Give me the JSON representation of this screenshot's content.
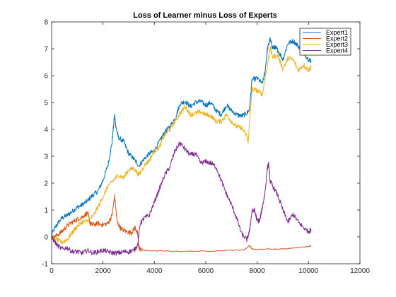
{
  "chart_data": {
    "type": "line",
    "title": "Loss of Learner minus Loss of Experts",
    "xlabel": "",
    "ylabel": "",
    "xlim": [
      0,
      12000
    ],
    "ylim": [
      -1,
      8
    ],
    "xticks": [
      0,
      2000,
      4000,
      6000,
      8000,
      10000,
      12000
    ],
    "yticks": [
      -1,
      0,
      1,
      2,
      3,
      4,
      5,
      6,
      7,
      8
    ],
    "grid": false,
    "legend": "top-right",
    "series": [
      {
        "name": "Expert1",
        "color": "#0072bd",
        "points": [
          [
            0,
            0.1
          ],
          [
            200,
            0.45
          ],
          [
            400,
            0.7
          ],
          [
            600,
            0.8
          ],
          [
            800,
            0.95
          ],
          [
            1000,
            1.1
          ],
          [
            1200,
            1.2
          ],
          [
            1400,
            1.35
          ],
          [
            1600,
            1.55
          ],
          [
            1800,
            1.7
          ],
          [
            2000,
            2.1
          ],
          [
            2200,
            2.7
          ],
          [
            2350,
            3.5
          ],
          [
            2450,
            4.55
          ],
          [
            2500,
            4.1
          ],
          [
            2600,
            3.7
          ],
          [
            2800,
            3.55
          ],
          [
            3000,
            3.1
          ],
          [
            3200,
            2.9
          ],
          [
            3400,
            2.65
          ],
          [
            3600,
            2.9
          ],
          [
            3800,
            3.1
          ],
          [
            4000,
            3.2
          ],
          [
            4200,
            3.55
          ],
          [
            4400,
            3.9
          ],
          [
            4600,
            4.1
          ],
          [
            4800,
            4.4
          ],
          [
            5000,
            4.95
          ],
          [
            5200,
            5.05
          ],
          [
            5400,
            4.85
          ],
          [
            5600,
            5.0
          ],
          [
            5800,
            5.05
          ],
          [
            6000,
            4.9
          ],
          [
            6200,
            5.0
          ],
          [
            6400,
            4.7
          ],
          [
            6600,
            4.55
          ],
          [
            6800,
            4.9
          ],
          [
            7000,
            4.7
          ],
          [
            7200,
            4.55
          ],
          [
            7400,
            4.5
          ],
          [
            7600,
            4.6
          ],
          [
            7700,
            4.75
          ],
          [
            7800,
            5.85
          ],
          [
            8000,
            5.9
          ],
          [
            8200,
            5.7
          ],
          [
            8300,
            6.1
          ],
          [
            8400,
            7.0
          ],
          [
            8500,
            7.35
          ],
          [
            8600,
            7.05
          ],
          [
            8700,
            7.05
          ],
          [
            8800,
            6.95
          ],
          [
            9000,
            6.6
          ],
          [
            9200,
            7.2
          ],
          [
            9400,
            7.3
          ],
          [
            9600,
            7.1
          ],
          [
            9800,
            6.9
          ],
          [
            10000,
            6.6
          ],
          [
            10100,
            6.55
          ]
        ]
      },
      {
        "name": "Expert2",
        "color": "#d95319",
        "points": [
          [
            0,
            -0.05
          ],
          [
            200,
            0.05
          ],
          [
            400,
            0.2
          ],
          [
            600,
            0.4
          ],
          [
            800,
            0.55
          ],
          [
            1000,
            0.65
          ],
          [
            1200,
            0.75
          ],
          [
            1400,
            0.9
          ],
          [
            1500,
            0.5
          ],
          [
            1600,
            0.45
          ],
          [
            1800,
            0.5
          ],
          [
            2000,
            0.45
          ],
          [
            2200,
            0.5
          ],
          [
            2350,
            0.8
          ],
          [
            2450,
            1.5
          ],
          [
            2550,
            0.55
          ],
          [
            2700,
            0.3
          ],
          [
            2900,
            0.2
          ],
          [
            3100,
            0.15
          ],
          [
            3250,
            0.35
          ],
          [
            3350,
            0.1
          ],
          [
            3400,
            -0.4
          ],
          [
            3500,
            -0.5
          ],
          [
            4000,
            -0.52
          ],
          [
            5000,
            -0.54
          ],
          [
            6000,
            -0.53
          ],
          [
            7000,
            -0.5
          ],
          [
            7500,
            -0.48
          ],
          [
            7700,
            -0.32
          ],
          [
            7800,
            -0.45
          ],
          [
            8000,
            -0.47
          ],
          [
            8500,
            -0.45
          ],
          [
            9000,
            -0.45
          ],
          [
            9500,
            -0.4
          ],
          [
            10000,
            -0.35
          ],
          [
            10100,
            -0.33
          ]
        ]
      },
      {
        "name": "Expert3",
        "color": "#edb120",
        "points": [
          [
            0,
            0.0
          ],
          [
            200,
            -0.1
          ],
          [
            400,
            -0.2
          ],
          [
            600,
            -0.1
          ],
          [
            800,
            0.15
          ],
          [
            1000,
            0.4
          ],
          [
            1200,
            0.55
          ],
          [
            1400,
            0.6
          ],
          [
            1600,
            0.75
          ],
          [
            1800,
            1.1
          ],
          [
            2000,
            1.5
          ],
          [
            2200,
            1.9
          ],
          [
            2400,
            2.1
          ],
          [
            2600,
            2.3
          ],
          [
            2800,
            2.2
          ],
          [
            3000,
            2.5
          ],
          [
            3200,
            2.55
          ],
          [
            3400,
            2.3
          ],
          [
            3600,
            2.65
          ],
          [
            3800,
            2.85
          ],
          [
            4000,
            3.2
          ],
          [
            4200,
            3.35
          ],
          [
            4400,
            3.8
          ],
          [
            4600,
            4.0
          ],
          [
            4800,
            4.3
          ],
          [
            5000,
            4.6
          ],
          [
            5200,
            4.85
          ],
          [
            5400,
            4.55
          ],
          [
            5600,
            4.6
          ],
          [
            5800,
            4.65
          ],
          [
            6000,
            4.55
          ],
          [
            6200,
            4.5
          ],
          [
            6400,
            4.3
          ],
          [
            6600,
            4.3
          ],
          [
            6800,
            4.55
          ],
          [
            7000,
            4.3
          ],
          [
            7200,
            4.1
          ],
          [
            7400,
            4.05
          ],
          [
            7600,
            3.75
          ],
          [
            7650,
            3.55
          ],
          [
            7800,
            5.5
          ],
          [
            8000,
            5.45
          ],
          [
            8200,
            5.3
          ],
          [
            8400,
            6.4
          ],
          [
            8500,
            7.05
          ],
          [
            8600,
            6.7
          ],
          [
            8800,
            6.75
          ],
          [
            9000,
            6.25
          ],
          [
            9200,
            6.65
          ],
          [
            9400,
            6.6
          ],
          [
            9600,
            6.2
          ],
          [
            9800,
            6.4
          ],
          [
            10000,
            6.2
          ],
          [
            10100,
            6.35
          ]
        ]
      },
      {
        "name": "Expert4",
        "color": "#7e2f8e",
        "points": [
          [
            0,
            0.0
          ],
          [
            200,
            -0.3
          ],
          [
            400,
            -0.45
          ],
          [
            600,
            -0.4
          ],
          [
            800,
            -0.55
          ],
          [
            1000,
            -0.55
          ],
          [
            1200,
            -0.6
          ],
          [
            1400,
            -0.5
          ],
          [
            1600,
            -0.6
          ],
          [
            1800,
            -0.55
          ],
          [
            2000,
            -0.5
          ],
          [
            2200,
            -0.55
          ],
          [
            2400,
            -0.6
          ],
          [
            2600,
            -0.6
          ],
          [
            2800,
            -0.55
          ],
          [
            3000,
            -0.55
          ],
          [
            3200,
            -0.5
          ],
          [
            3350,
            -0.3
          ],
          [
            3450,
            0.5
          ],
          [
            3600,
            0.7
          ],
          [
            3800,
            0.8
          ],
          [
            4000,
            1.3
          ],
          [
            4200,
            1.8
          ],
          [
            4400,
            2.3
          ],
          [
            4600,
            2.6
          ],
          [
            4800,
            3.2
          ],
          [
            5000,
            3.5
          ],
          [
            5200,
            3.25
          ],
          [
            5400,
            3.05
          ],
          [
            5600,
            3.1
          ],
          [
            5800,
            2.75
          ],
          [
            6000,
            2.8
          ],
          [
            6200,
            2.75
          ],
          [
            6400,
            2.6
          ],
          [
            6600,
            2.1
          ],
          [
            6800,
            1.6
          ],
          [
            7000,
            1.2
          ],
          [
            7200,
            0.7
          ],
          [
            7400,
            0.1
          ],
          [
            7600,
            -0.1
          ],
          [
            7700,
            0.2
          ],
          [
            7800,
            0.95
          ],
          [
            7900,
            1.0
          ],
          [
            8000,
            0.6
          ],
          [
            8100,
            0.6
          ],
          [
            8200,
            1.1
          ],
          [
            8300,
            1.6
          ],
          [
            8400,
            2.6
          ],
          [
            8450,
            2.7
          ],
          [
            8500,
            2.1
          ],
          [
            8600,
            1.9
          ],
          [
            8800,
            1.55
          ],
          [
            9000,
            1.0
          ],
          [
            9200,
            0.55
          ],
          [
            9400,
            0.85
          ],
          [
            9600,
            0.55
          ],
          [
            9800,
            0.35
          ],
          [
            10000,
            0.2
          ],
          [
            10100,
            0.25
          ]
        ]
      }
    ]
  }
}
